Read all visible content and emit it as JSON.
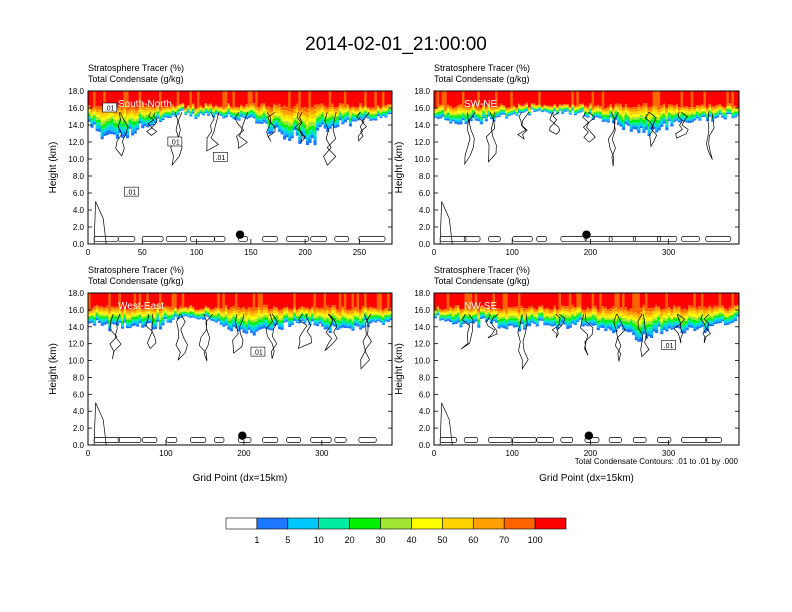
{
  "title": "2014-02-01_21:00:00",
  "footer_note": "Total Condensate Contours: .01 to .01 by .000",
  "colorbar": {
    "colors": [
      "#ffffff",
      "#1e78ff",
      "#00c8ff",
      "#00eca0",
      "#00f000",
      "#a0e632",
      "#ffff00",
      "#ffd200",
      "#ffa000",
      "#ff6400",
      "#ff0000"
    ],
    "labels": [
      "1",
      "5",
      "10",
      "20",
      "30",
      "40",
      "50",
      "60",
      "70",
      "100"
    ]
  },
  "chart_data": [
    {
      "type": "heatmap",
      "title_line1": "Stratosphere Tracer   (%)",
      "title_line2": "Total Condensate   (g/kg)",
      "panel_label": "South-North",
      "xlabel": "",
      "ylabel": "Height (km)",
      "xlim": [
        0,
        280
      ],
      "ylim": [
        0,
        18
      ],
      "xticks": [
        "0",
        "50",
        "100",
        "150",
        "200",
        "250"
      ],
      "xtick_values": [
        0,
        50,
        100,
        150,
        200,
        250
      ],
      "yticks": [
        "0.0",
        "2.0",
        "4.0",
        "6.0",
        "8.0",
        "10.0",
        "12.0",
        "14.0",
        "16.0",
        "18.0"
      ],
      "contour_labels": [
        {
          "text": ".01",
          "x": 20,
          "y": 16.0
        },
        {
          "text": ".01",
          "x": 80,
          "y": 12.0
        },
        {
          "text": ".01",
          "x": 122,
          "y": 10.2
        },
        {
          "text": ".01",
          "x": 40,
          "y": 6.1
        }
      ],
      "marker": {
        "x": 140,
        "y": 1.1
      }
    },
    {
      "type": "heatmap",
      "title_line1": "Stratosphere Tracer   (%)",
      "title_line2": "Total Condensate   (g/kg)",
      "panel_label": "SW-NE",
      "xlabel": "",
      "ylabel": "Height (km)",
      "xlim": [
        0,
        390
      ],
      "ylim": [
        0,
        18
      ],
      "xticks": [
        "0",
        "100",
        "200",
        "300"
      ],
      "xtick_values": [
        0,
        100,
        200,
        300
      ],
      "yticks": [
        "0.0",
        "2.0",
        "4.0",
        "6.0",
        "8.0",
        "10.0",
        "12.0",
        "14.0",
        "16.0",
        "18.0"
      ],
      "contour_labels": [],
      "marker": {
        "x": 195,
        "y": 1.1
      }
    },
    {
      "type": "heatmap",
      "title_line1": "Stratosphere Tracer   (%)",
      "title_line2": "Total Condensate   (g/kg)",
      "panel_label": "West-East",
      "xlabel": "Grid Point (dx=15km)",
      "ylabel": "Height (km)",
      "xlim": [
        0,
        390
      ],
      "ylim": [
        0,
        18
      ],
      "xticks": [
        "0",
        "100",
        "200",
        "300"
      ],
      "xtick_values": [
        0,
        100,
        200,
        300
      ],
      "yticks": [
        "0.0",
        "2.0",
        "4.0",
        "6.0",
        "8.0",
        "10.0",
        "12.0",
        "14.0",
        "16.0",
        "18.0"
      ],
      "contour_labels": [
        {
          "text": ".01",
          "x": 218,
          "y": 11.0
        }
      ],
      "marker": {
        "x": 198,
        "y": 1.1
      }
    },
    {
      "type": "heatmap",
      "title_line1": "Stratosphere Tracer   (%)",
      "title_line2": "Total Condensate   (g/kg)",
      "panel_label": "NW-SE",
      "xlabel": "Grid Point (dx=15km)",
      "ylabel": "Height (km)",
      "xlim": [
        0,
        390
      ],
      "ylim": [
        0,
        18
      ],
      "xticks": [
        "0",
        "100",
        "200",
        "300"
      ],
      "xtick_values": [
        0,
        100,
        200,
        300
      ],
      "yticks": [
        "0.0",
        "2.0",
        "4.0",
        "6.0",
        "8.0",
        "10.0",
        "12.0",
        "14.0",
        "16.0",
        "18.0"
      ],
      "contour_labels": [
        {
          "text": ".01",
          "x": 300,
          "y": 11.8
        }
      ],
      "marker": {
        "x": 198,
        "y": 1.1
      }
    }
  ]
}
